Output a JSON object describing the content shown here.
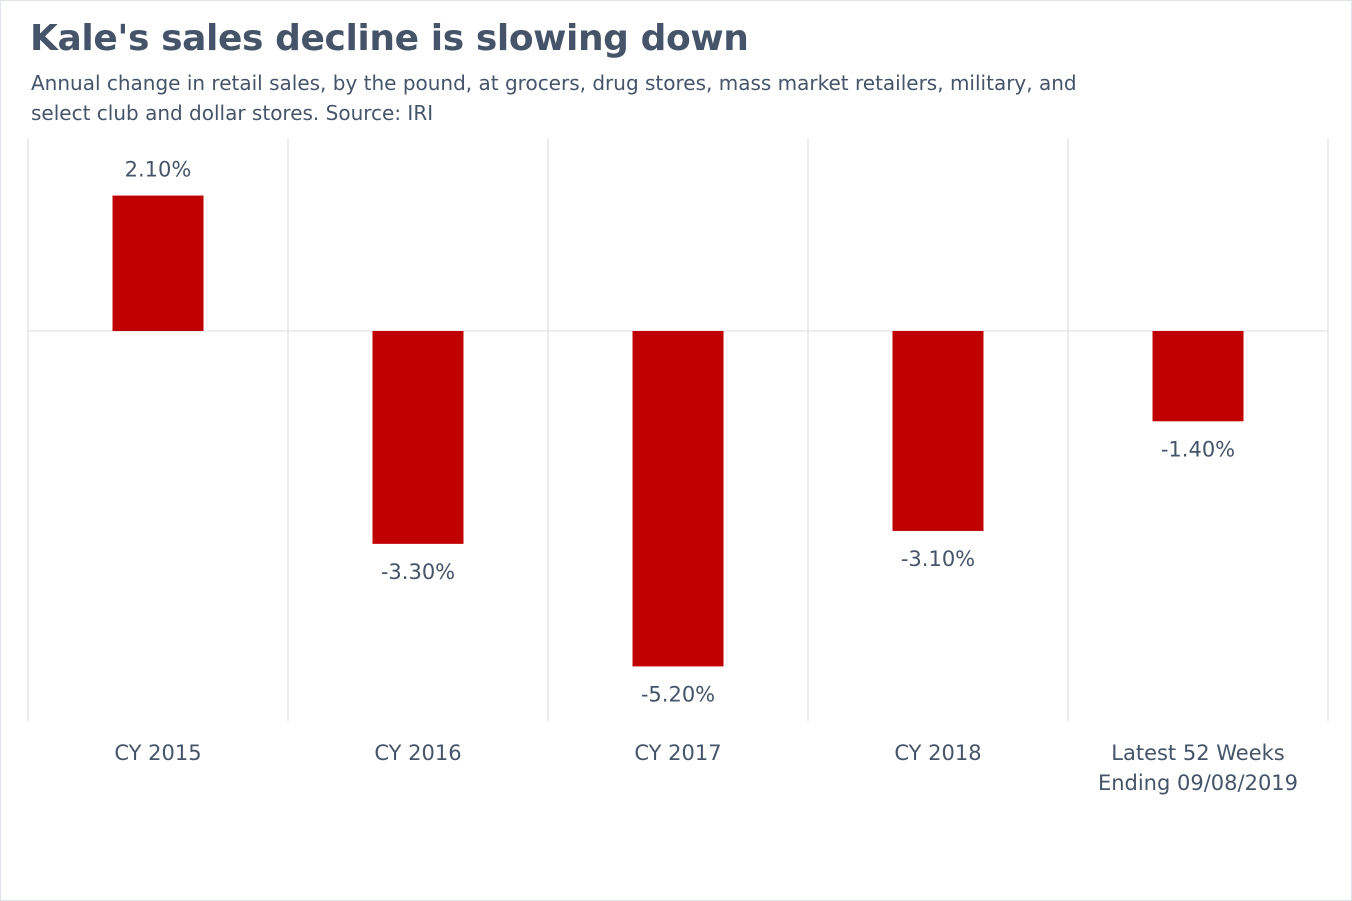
{
  "chart_data": {
    "type": "bar",
    "title": "Kale's sales decline is slowing down",
    "subtitle": "Annual change in retail sales, by the pound, at grocers, drug stores, mass market retailers, military, and select club and dollar stores. Source: IRI",
    "categories": [
      [
        "CY 2015"
      ],
      [
        "CY 2016"
      ],
      [
        "CY 2017"
      ],
      [
        "CY 2018"
      ],
      [
        "Latest 52 Weeks",
        "Ending 09/08/2019"
      ]
    ],
    "values": [
      2.1,
      -3.3,
      -5.2,
      -3.1,
      -1.4
    ],
    "value_labels": [
      "2.10%",
      "-3.30%",
      "-5.20%",
      "-3.10%",
      "-1.40%"
    ],
    "xlabel": "",
    "ylabel": "",
    "ylim": [
      -6.0,
      3.0
    ],
    "grid": "vertical",
    "legend": "none",
    "colors": {
      "bar": "#c00000",
      "text": "#46546a",
      "grid": "#e3e3e3"
    }
  }
}
